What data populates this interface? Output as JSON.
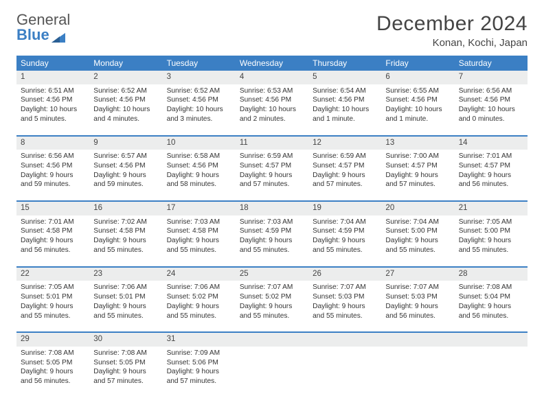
{
  "logo": {
    "part1": "General",
    "part2": "Blue"
  },
  "title": "December 2024",
  "location": "Konan, Kochi, Japan",
  "colors": {
    "header_bg": "#3b7fc4",
    "daynum_bg": "#eceded",
    "week_border": "#3b7fc4",
    "text": "#333333",
    "background": "#ffffff"
  },
  "dow": [
    "Sunday",
    "Monday",
    "Tuesday",
    "Wednesday",
    "Thursday",
    "Friday",
    "Saturday"
  ],
  "weeks": [
    [
      {
        "n": "1",
        "sr": "Sunrise: 6:51 AM",
        "ss": "Sunset: 4:56 PM",
        "dl": "Daylight: 10 hours and 5 minutes."
      },
      {
        "n": "2",
        "sr": "Sunrise: 6:52 AM",
        "ss": "Sunset: 4:56 PM",
        "dl": "Daylight: 10 hours and 4 minutes."
      },
      {
        "n": "3",
        "sr": "Sunrise: 6:52 AM",
        "ss": "Sunset: 4:56 PM",
        "dl": "Daylight: 10 hours and 3 minutes."
      },
      {
        "n": "4",
        "sr": "Sunrise: 6:53 AM",
        "ss": "Sunset: 4:56 PM",
        "dl": "Daylight: 10 hours and 2 minutes."
      },
      {
        "n": "5",
        "sr": "Sunrise: 6:54 AM",
        "ss": "Sunset: 4:56 PM",
        "dl": "Daylight: 10 hours and 1 minute."
      },
      {
        "n": "6",
        "sr": "Sunrise: 6:55 AM",
        "ss": "Sunset: 4:56 PM",
        "dl": "Daylight: 10 hours and 1 minute."
      },
      {
        "n": "7",
        "sr": "Sunrise: 6:56 AM",
        "ss": "Sunset: 4:56 PM",
        "dl": "Daylight: 10 hours and 0 minutes."
      }
    ],
    [
      {
        "n": "8",
        "sr": "Sunrise: 6:56 AM",
        "ss": "Sunset: 4:56 PM",
        "dl": "Daylight: 9 hours and 59 minutes."
      },
      {
        "n": "9",
        "sr": "Sunrise: 6:57 AM",
        "ss": "Sunset: 4:56 PM",
        "dl": "Daylight: 9 hours and 59 minutes."
      },
      {
        "n": "10",
        "sr": "Sunrise: 6:58 AM",
        "ss": "Sunset: 4:56 PM",
        "dl": "Daylight: 9 hours and 58 minutes."
      },
      {
        "n": "11",
        "sr": "Sunrise: 6:59 AM",
        "ss": "Sunset: 4:57 PM",
        "dl": "Daylight: 9 hours and 57 minutes."
      },
      {
        "n": "12",
        "sr": "Sunrise: 6:59 AM",
        "ss": "Sunset: 4:57 PM",
        "dl": "Daylight: 9 hours and 57 minutes."
      },
      {
        "n": "13",
        "sr": "Sunrise: 7:00 AM",
        "ss": "Sunset: 4:57 PM",
        "dl": "Daylight: 9 hours and 57 minutes."
      },
      {
        "n": "14",
        "sr": "Sunrise: 7:01 AM",
        "ss": "Sunset: 4:57 PM",
        "dl": "Daylight: 9 hours and 56 minutes."
      }
    ],
    [
      {
        "n": "15",
        "sr": "Sunrise: 7:01 AM",
        "ss": "Sunset: 4:58 PM",
        "dl": "Daylight: 9 hours and 56 minutes."
      },
      {
        "n": "16",
        "sr": "Sunrise: 7:02 AM",
        "ss": "Sunset: 4:58 PM",
        "dl": "Daylight: 9 hours and 55 minutes."
      },
      {
        "n": "17",
        "sr": "Sunrise: 7:03 AM",
        "ss": "Sunset: 4:58 PM",
        "dl": "Daylight: 9 hours and 55 minutes."
      },
      {
        "n": "18",
        "sr": "Sunrise: 7:03 AM",
        "ss": "Sunset: 4:59 PM",
        "dl": "Daylight: 9 hours and 55 minutes."
      },
      {
        "n": "19",
        "sr": "Sunrise: 7:04 AM",
        "ss": "Sunset: 4:59 PM",
        "dl": "Daylight: 9 hours and 55 minutes."
      },
      {
        "n": "20",
        "sr": "Sunrise: 7:04 AM",
        "ss": "Sunset: 5:00 PM",
        "dl": "Daylight: 9 hours and 55 minutes."
      },
      {
        "n": "21",
        "sr": "Sunrise: 7:05 AM",
        "ss": "Sunset: 5:00 PM",
        "dl": "Daylight: 9 hours and 55 minutes."
      }
    ],
    [
      {
        "n": "22",
        "sr": "Sunrise: 7:05 AM",
        "ss": "Sunset: 5:01 PM",
        "dl": "Daylight: 9 hours and 55 minutes."
      },
      {
        "n": "23",
        "sr": "Sunrise: 7:06 AM",
        "ss": "Sunset: 5:01 PM",
        "dl": "Daylight: 9 hours and 55 minutes."
      },
      {
        "n": "24",
        "sr": "Sunrise: 7:06 AM",
        "ss": "Sunset: 5:02 PM",
        "dl": "Daylight: 9 hours and 55 minutes."
      },
      {
        "n": "25",
        "sr": "Sunrise: 7:07 AM",
        "ss": "Sunset: 5:02 PM",
        "dl": "Daylight: 9 hours and 55 minutes."
      },
      {
        "n": "26",
        "sr": "Sunrise: 7:07 AM",
        "ss": "Sunset: 5:03 PM",
        "dl": "Daylight: 9 hours and 55 minutes."
      },
      {
        "n": "27",
        "sr": "Sunrise: 7:07 AM",
        "ss": "Sunset: 5:03 PM",
        "dl": "Daylight: 9 hours and 56 minutes."
      },
      {
        "n": "28",
        "sr": "Sunrise: 7:08 AM",
        "ss": "Sunset: 5:04 PM",
        "dl": "Daylight: 9 hours and 56 minutes."
      }
    ],
    [
      {
        "n": "29",
        "sr": "Sunrise: 7:08 AM",
        "ss": "Sunset: 5:05 PM",
        "dl": "Daylight: 9 hours and 56 minutes."
      },
      {
        "n": "30",
        "sr": "Sunrise: 7:08 AM",
        "ss": "Sunset: 5:05 PM",
        "dl": "Daylight: 9 hours and 57 minutes."
      },
      {
        "n": "31",
        "sr": "Sunrise: 7:09 AM",
        "ss": "Sunset: 5:06 PM",
        "dl": "Daylight: 9 hours and 57 minutes."
      },
      {
        "n": "",
        "sr": "",
        "ss": "",
        "dl": ""
      },
      {
        "n": "",
        "sr": "",
        "ss": "",
        "dl": ""
      },
      {
        "n": "",
        "sr": "",
        "ss": "",
        "dl": ""
      },
      {
        "n": "",
        "sr": "",
        "ss": "",
        "dl": ""
      }
    ]
  ]
}
